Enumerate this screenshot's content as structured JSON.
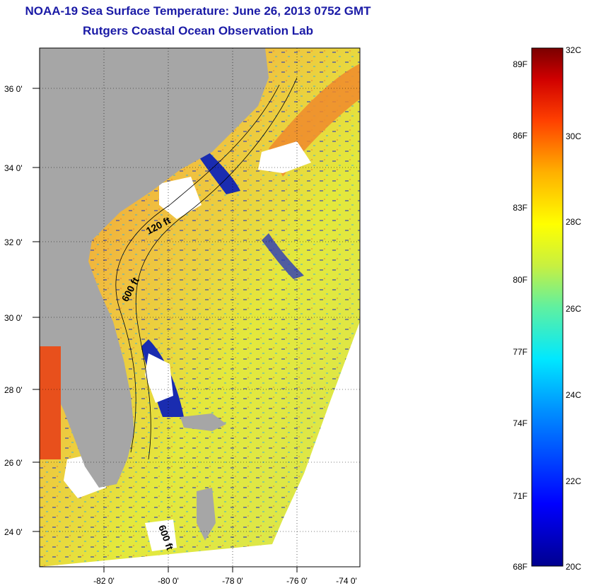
{
  "title": {
    "line1": "NOAA-19 Sea Surface Temperature:  June 26, 2013 0752 GMT",
    "line2": "Rutgers Coastal Ocean Observation Lab"
  },
  "map": {
    "lon_ticks": [
      "-82 0'",
      "-80 0'",
      "-78 0'",
      "-76 0'",
      "-74 0'"
    ],
    "lat_ticks": [
      "36 0'",
      "34 0'",
      "32 0'",
      "30 0'",
      "28 0'",
      "26 0'",
      "24 0'"
    ],
    "contour_labels": [
      "120 ft",
      "600 ft",
      "600 ft"
    ],
    "colors": {
      "land": "#a6a6a6",
      "cloud": "#ffffff",
      "warm": "#f28a2a",
      "mid": "#e8e43a",
      "cool": "#2a3ab8"
    }
  },
  "colorbar": {
    "fahrenheit": [
      "89F",
      "86F",
      "83F",
      "80F",
      "77F",
      "74F",
      "71F",
      "68F"
    ],
    "celsius": [
      "32C",
      "30C",
      "28C",
      "26C",
      "24C",
      "22C",
      "20C"
    ],
    "range_c": [
      20,
      32
    ]
  }
}
